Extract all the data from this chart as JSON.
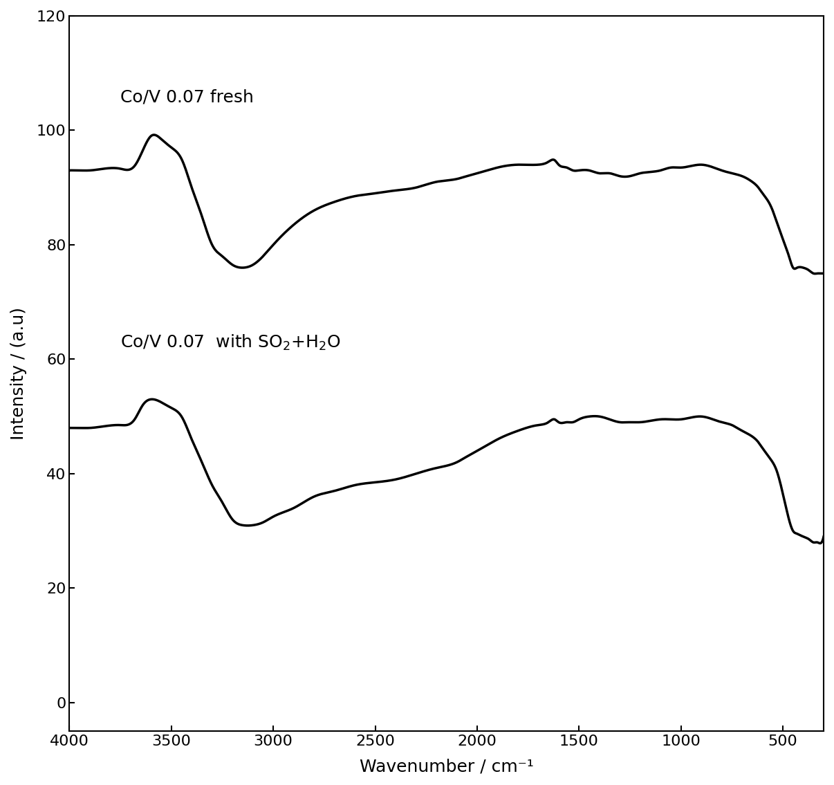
{
  "title": "",
  "xlabel": "Wavenumber / cm⁻¹",
  "ylabel": "Intensity / (a.u)",
  "xlim": [
    4000,
    300
  ],
  "ylim": [
    -5,
    120
  ],
  "yticks": [
    0,
    20,
    40,
    60,
    80,
    100,
    120
  ],
  "xticks": [
    4000,
    3500,
    3000,
    2500,
    2000,
    1500,
    1000,
    500
  ],
  "label1": "Co/V 0.07 fresh",
  "label2_part1": "Co/V 0.07  with SO",
  "label2_sub": "2",
  "label2_plus": "+H",
  "label2_sub2": "2",
  "label2_end": "O",
  "line_color": "#000000",
  "line_width": 2.5,
  "background_color": "#ffffff",
  "curve1_x": [
    4000,
    3900,
    3800,
    3700,
    3600,
    3500,
    3450,
    3400,
    3350,
    3300,
    3250,
    3200,
    3100,
    3000,
    2900,
    2800,
    2700,
    2600,
    2500,
    2400,
    2300,
    2200,
    2100,
    2000,
    1900,
    1800,
    1700,
    1650,
    1600,
    1550,
    1500,
    1450,
    1400,
    1350,
    1300,
    1200,
    1100,
    1000,
    900,
    800,
    700,
    650,
    600,
    550,
    500,
    450,
    400,
    350,
    300
  ],
  "curve1_y": [
    93,
    93,
    93,
    93,
    93,
    93.5,
    95,
    97.5,
    99,
    98.5,
    97,
    95,
    92,
    89,
    86,
    83,
    81,
    79,
    79,
    80,
    82,
    85,
    88,
    91,
    93,
    94,
    94,
    94,
    94.5,
    95,
    95,
    94,
    93,
    92,
    91,
    92,
    93,
    94,
    94,
    93.5,
    92,
    91,
    90,
    88,
    85,
    80,
    76,
    76,
    75
  ],
  "curve2_x": [
    4000,
    3900,
    3800,
    3700,
    3600,
    3500,
    3450,
    3400,
    3350,
    3300,
    3250,
    3200,
    3100,
    3000,
    2900,
    2800,
    2700,
    2600,
    2500,
    2400,
    2300,
    2200,
    2100,
    2000,
    1900,
    1800,
    1700,
    1650,
    1600,
    1550,
    1500,
    1450,
    1400,
    1350,
    1300,
    1200,
    1100,
    1000,
    900,
    800,
    700,
    650,
    600,
    550,
    500,
    450,
    400,
    350,
    300
  ],
  "curve2_y": [
    48,
    48.5,
    48.5,
    48.5,
    49,
    49.5,
    51.5,
    53,
    52.5,
    51.5,
    50,
    48,
    46,
    44,
    42,
    40,
    38,
    36,
    35,
    35,
    36,
    38,
    41,
    44,
    47,
    48,
    49,
    49,
    49.5,
    50,
    50.5,
    50,
    49.5,
    49,
    48.5,
    49,
    49.5,
    50,
    50,
    49.5,
    48.5,
    47,
    45,
    43,
    40,
    35,
    30,
    29.5,
    29
  ]
}
